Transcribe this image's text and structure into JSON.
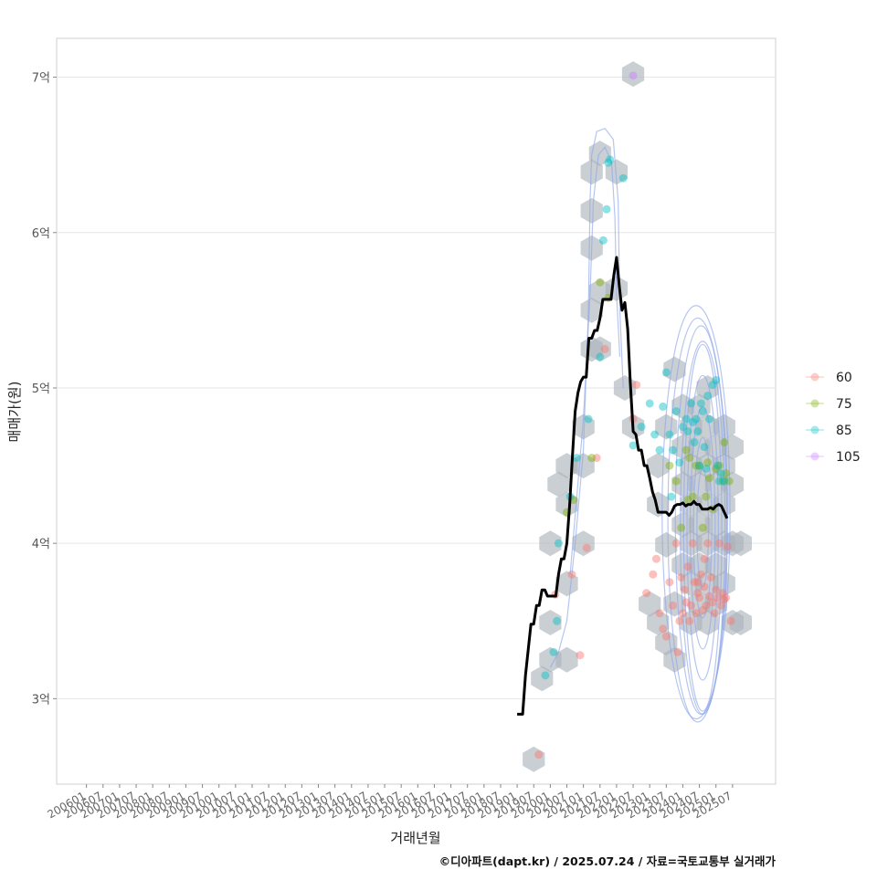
{
  "chart_data": {
    "type": "scatter",
    "title": "",
    "xlabel": "거래년월",
    "ylabel": "매매가(원)",
    "caption": "©디아파트(dapt.kr) / 2025.07.24 / 자료=국토교통부 실거래가",
    "x_tick_labels": [
      "200601",
      "200607",
      "200701",
      "200707",
      "200801",
      "200807",
      "200901",
      "200907",
      "201001",
      "201007",
      "201101",
      "201107",
      "201201",
      "201207",
      "201301",
      "201307",
      "201401",
      "201407",
      "201501",
      "201507",
      "201601",
      "201607",
      "201701",
      "201707",
      "201801",
      "201807",
      "201901",
      "201907",
      "202001",
      "202007",
      "202101",
      "202107",
      "202201",
      "202207",
      "202301",
      "202307",
      "202401",
      "202407",
      "202501",
      "202507"
    ],
    "y_tick_labels": [
      "3억",
      "4억",
      "5억",
      "6억",
      "7억"
    ],
    "y_tick_values": [
      3,
      4,
      5,
      6,
      7
    ],
    "ylim": [
      2.45,
      7.25
    ],
    "xlim_index": [
      -1.8,
      41.6
    ],
    "legend": [
      {
        "label": "60",
        "color": "#F8766D"
      },
      {
        "label": "75",
        "color": "#7CAE00"
      },
      {
        "label": "85",
        "color": "#00BFC4"
      },
      {
        "label": "105",
        "color": "#C77CFF"
      }
    ],
    "median_line": {
      "color": "#000000",
      "points": [
        [
          26.0,
          2.9
        ],
        [
          26.33,
          2.9
        ],
        [
          26.5,
          3.15
        ],
        [
          26.83,
          3.48
        ],
        [
          27.0,
          3.48
        ],
        [
          27.17,
          3.6
        ],
        [
          27.33,
          3.6
        ],
        [
          27.5,
          3.7
        ],
        [
          27.67,
          3.7
        ],
        [
          27.83,
          3.66
        ],
        [
          28.0,
          3.66
        ],
        [
          28.17,
          3.66
        ],
        [
          28.33,
          3.66
        ],
        [
          28.5,
          3.8
        ],
        [
          28.67,
          3.9
        ],
        [
          28.83,
          3.9
        ],
        [
          29.0,
          4.0
        ],
        [
          29.17,
          4.25
        ],
        [
          29.33,
          4.55
        ],
        [
          29.5,
          4.85
        ],
        [
          29.67,
          4.97
        ],
        [
          29.83,
          5.04
        ],
        [
          30.0,
          5.07
        ],
        [
          30.17,
          5.07
        ],
        [
          30.33,
          5.32
        ],
        [
          30.5,
          5.32
        ],
        [
          30.67,
          5.37
        ],
        [
          30.83,
          5.37
        ],
        [
          31.0,
          5.45
        ],
        [
          31.17,
          5.57
        ],
        [
          31.33,
          5.57
        ],
        [
          31.5,
          5.57
        ],
        [
          31.67,
          5.57
        ],
        [
          31.83,
          5.72
        ],
        [
          32.0,
          5.84
        ],
        [
          32.17,
          5.65
        ],
        [
          32.33,
          5.5
        ],
        [
          32.5,
          5.55
        ],
        [
          32.67,
          5.38
        ],
        [
          32.83,
          5.03
        ],
        [
          33.0,
          4.72
        ],
        [
          33.17,
          4.7
        ],
        [
          33.33,
          4.6
        ],
        [
          33.5,
          4.6
        ],
        [
          33.67,
          4.5
        ],
        [
          33.83,
          4.5
        ],
        [
          34.0,
          4.42
        ],
        [
          34.17,
          4.33
        ],
        [
          34.33,
          4.28
        ],
        [
          34.5,
          4.2
        ],
        [
          34.67,
          4.2
        ],
        [
          34.83,
          4.2
        ],
        [
          35.0,
          4.2
        ],
        [
          35.17,
          4.18
        ],
        [
          35.33,
          4.2
        ],
        [
          35.5,
          4.24
        ],
        [
          35.67,
          4.25
        ],
        [
          35.83,
          4.25
        ],
        [
          36.0,
          4.26
        ],
        [
          36.17,
          4.24
        ],
        [
          36.33,
          4.25
        ],
        [
          36.5,
          4.25
        ],
        [
          36.67,
          4.27
        ],
        [
          36.83,
          4.25
        ],
        [
          37.0,
          4.25
        ],
        [
          37.17,
          4.22
        ],
        [
          37.33,
          4.22
        ],
        [
          37.5,
          4.22
        ],
        [
          37.67,
          4.23
        ],
        [
          37.83,
          4.22
        ],
        [
          38.0,
          4.24
        ],
        [
          38.17,
          4.25
        ],
        [
          38.33,
          4.24
        ],
        [
          38.5,
          4.2
        ],
        [
          38.67,
          4.16
        ]
      ]
    },
    "hexbins": [
      [
        27.0,
        2.61
      ],
      [
        27.5,
        3.13
      ],
      [
        28.0,
        3.25
      ],
      [
        28.0,
        3.49
      ],
      [
        28.0,
        4.0
      ],
      [
        28.5,
        4.38
      ],
      [
        29.0,
        3.25
      ],
      [
        29.0,
        3.74
      ],
      [
        29.0,
        4.25
      ],
      [
        29.0,
        4.5
      ],
      [
        30.0,
        4.0
      ],
      [
        30.0,
        4.5
      ],
      [
        30.0,
        4.75
      ],
      [
        30.5,
        5.25
      ],
      [
        30.5,
        5.5
      ],
      [
        31.0,
        5.25
      ],
      [
        31.0,
        5.62
      ],
      [
        30.5,
        5.9
      ],
      [
        30.5,
        6.14
      ],
      [
        30.5,
        6.39
      ],
      [
        31.0,
        6.51
      ],
      [
        32.0,
        6.39
      ],
      [
        32.0,
        5.64
      ],
      [
        32.5,
        5.0
      ],
      [
        33.0,
        7.02
      ],
      [
        33.0,
        4.75
      ],
      [
        34.0,
        3.61
      ],
      [
        34.5,
        3.49
      ],
      [
        34.5,
        4.25
      ],
      [
        34.5,
        4.5
      ],
      [
        35.0,
        3.36
      ],
      [
        35.0,
        3.99
      ],
      [
        35.0,
        4.75
      ],
      [
        35.5,
        5.12
      ],
      [
        35.5,
        3.25
      ],
      [
        35.5,
        3.61
      ],
      [
        36.0,
        3.86
      ],
      [
        36.0,
        4.12
      ],
      [
        36.0,
        4.38
      ],
      [
        36.0,
        4.62
      ],
      [
        36.0,
        4.88
      ],
      [
        36.5,
        3.49
      ],
      [
        36.5,
        3.74
      ],
      [
        36.5,
        4.0
      ],
      [
        36.5,
        4.25
      ],
      [
        36.5,
        4.5
      ],
      [
        36.5,
        4.75
      ],
      [
        37.0,
        3.61
      ],
      [
        37.0,
        3.86
      ],
      [
        37.0,
        4.12
      ],
      [
        37.0,
        4.38
      ],
      [
        37.0,
        4.62
      ],
      [
        37.0,
        4.88
      ],
      [
        37.5,
        3.49
      ],
      [
        37.5,
        3.74
      ],
      [
        37.5,
        4.0
      ],
      [
        37.5,
        4.25
      ],
      [
        37.5,
        4.5
      ],
      [
        37.5,
        4.75
      ],
      [
        37.5,
        5.0
      ],
      [
        38.0,
        3.61
      ],
      [
        38.0,
        3.86
      ],
      [
        38.0,
        4.12
      ],
      [
        38.0,
        4.38
      ],
      [
        38.0,
        4.62
      ],
      [
        38.5,
        3.74
      ],
      [
        38.5,
        4.0
      ],
      [
        38.5,
        4.25
      ],
      [
        38.5,
        4.5
      ],
      [
        38.5,
        4.75
      ],
      [
        39.0,
        3.49
      ],
      [
        39.0,
        4.0
      ],
      [
        39.0,
        4.38
      ],
      [
        39.0,
        4.62
      ],
      [
        39.5,
        3.49
      ],
      [
        39.5,
        4.0
      ]
    ],
    "series": [
      {
        "name": "60",
        "color": "#F8766D",
        "points": [
          [
            27.3,
            2.64
          ],
          [
            28.3,
            3.67
          ],
          [
            29.3,
            3.8
          ],
          [
            29.8,
            3.28
          ],
          [
            30.2,
            3.97
          ],
          [
            30.8,
            4.55
          ],
          [
            31.3,
            5.25
          ],
          [
            33.0,
            4.8
          ],
          [
            33.2,
            5.02
          ],
          [
            33.8,
            3.68
          ],
          [
            34.2,
            3.8
          ],
          [
            34.4,
            3.9
          ],
          [
            34.6,
            3.55
          ],
          [
            34.8,
            3.45
          ],
          [
            35.0,
            3.4
          ],
          [
            35.2,
            3.75
          ],
          [
            35.4,
            3.6
          ],
          [
            35.6,
            4.0
          ],
          [
            35.7,
            3.3
          ],
          [
            35.8,
            3.5
          ],
          [
            35.9,
            3.78
          ],
          [
            36.0,
            3.55
          ],
          [
            36.1,
            3.7
          ],
          [
            36.2,
            3.62
          ],
          [
            36.3,
            3.85
          ],
          [
            36.4,
            3.5
          ],
          [
            36.5,
            3.6
          ],
          [
            36.6,
            4.0
          ],
          [
            36.7,
            3.75
          ],
          [
            36.8,
            3.55
          ],
          [
            36.9,
            3.68
          ],
          [
            37.0,
            3.65
          ],
          [
            37.1,
            3.8
          ],
          [
            37.2,
            3.57
          ],
          [
            37.3,
            3.72
          ],
          [
            37.4,
            3.6
          ],
          [
            37.5,
            4.0
          ],
          [
            37.6,
            3.66
          ],
          [
            37.7,
            3.78
          ],
          [
            37.8,
            3.62
          ],
          [
            37.9,
            3.55
          ],
          [
            38.0,
            3.7
          ],
          [
            38.1,
            3.65
          ],
          [
            38.2,
            4.0
          ],
          [
            38.3,
            3.6
          ],
          [
            38.4,
            3.68
          ],
          [
            38.5,
            3.64
          ],
          [
            38.6,
            3.65
          ],
          [
            38.7,
            3.98
          ],
          [
            36.9,
            3.75
          ],
          [
            37.3,
            3.9
          ],
          [
            38.9,
            3.5
          ]
        ]
      },
      {
        "name": "75",
        "color": "#7CAE00",
        "points": [
          [
            29.0,
            4.2
          ],
          [
            29.4,
            4.28
          ],
          [
            30.5,
            4.55
          ],
          [
            31.0,
            5.68
          ],
          [
            31.5,
            5.58
          ],
          [
            35.2,
            4.5
          ],
          [
            35.6,
            4.4
          ],
          [
            35.9,
            4.1
          ],
          [
            36.2,
            4.6
          ],
          [
            36.4,
            4.55
          ],
          [
            36.6,
            4.3
          ],
          [
            36.8,
            4.5
          ],
          [
            37.0,
            4.5
          ],
          [
            37.2,
            4.1
          ],
          [
            37.4,
            4.3
          ],
          [
            37.6,
            4.42
          ],
          [
            37.8,
            4.22
          ],
          [
            38.0,
            4.48
          ],
          [
            38.2,
            4.5
          ],
          [
            38.4,
            4.4
          ],
          [
            38.6,
            4.45
          ],
          [
            38.8,
            4.4
          ],
          [
            38.5,
            4.65
          ],
          [
            36.3,
            4.28
          ],
          [
            37.5,
            4.52
          ]
        ]
      },
      {
        "name": "85",
        "color": "#00BFC4",
        "points": [
          [
            27.7,
            3.15
          ],
          [
            28.2,
            3.3
          ],
          [
            28.4,
            3.5
          ],
          [
            28.5,
            4.0
          ],
          [
            29.2,
            4.3
          ],
          [
            29.6,
            4.55
          ],
          [
            30.3,
            4.8
          ],
          [
            31.0,
            5.2
          ],
          [
            31.2,
            5.95
          ],
          [
            31.4,
            6.15
          ],
          [
            31.5,
            6.45
          ],
          [
            31.6,
            6.47
          ],
          [
            32.4,
            6.35
          ],
          [
            33.0,
            4.63
          ],
          [
            33.5,
            4.75
          ],
          [
            34.0,
            4.9
          ],
          [
            34.3,
            4.7
          ],
          [
            34.6,
            4.6
          ],
          [
            34.8,
            4.88
          ],
          [
            35.0,
            5.1
          ],
          [
            35.2,
            4.7
          ],
          [
            35.4,
            4.6
          ],
          [
            35.6,
            4.85
          ],
          [
            35.8,
            4.52
          ],
          [
            36.0,
            4.75
          ],
          [
            36.2,
            4.8
          ],
          [
            36.3,
            4.72
          ],
          [
            36.5,
            4.9
          ],
          [
            36.6,
            4.78
          ],
          [
            36.7,
            4.65
          ],
          [
            36.8,
            4.8
          ],
          [
            36.9,
            4.72
          ],
          [
            37.0,
            4.5
          ],
          [
            37.1,
            4.9
          ],
          [
            37.2,
            4.85
          ],
          [
            37.3,
            4.62
          ],
          [
            37.5,
            4.95
          ],
          [
            37.6,
            4.8
          ],
          [
            37.8,
            5.02
          ],
          [
            38.0,
            5.05
          ],
          [
            38.2,
            4.4
          ],
          [
            38.3,
            4.45
          ],
          [
            38.1,
            4.5
          ],
          [
            38.5,
            4.4
          ],
          [
            35.3,
            4.3
          ],
          [
            37.4,
            4.48
          ]
        ]
      },
      {
        "name": "105",
        "color": "#C77CFF",
        "points": [
          [
            33.0,
            7.01
          ]
        ]
      }
    ],
    "density_contours": [
      {
        "center": [
          37.2,
          4.1
        ],
        "radius": [
          0.35,
          0.38
        ]
      },
      {
        "center": [
          37.2,
          4.1
        ],
        "radius": [
          0.55,
          0.58
        ]
      },
      {
        "center": [
          37.2,
          4.1
        ],
        "radius": [
          0.75,
          0.78
        ]
      },
      {
        "center": [
          37.2,
          4.1
        ],
        "radius": [
          0.95,
          0.98
        ]
      },
      {
        "center": [
          37.2,
          4.1
        ],
        "radius": [
          1.15,
          1.18
        ]
      },
      {
        "center": [
          37.2,
          4.1
        ],
        "radius": [
          1.35,
          1.2
        ]
      },
      {
        "center": [
          37.1,
          4.15
        ],
        "radius": [
          1.55,
          1.25
        ]
      },
      {
        "center": [
          36.9,
          4.15
        ],
        "radius": [
          1.8,
          1.3
        ]
      },
      {
        "center": [
          36.8,
          4.2
        ],
        "radius": [
          2.05,
          1.33
        ]
      }
    ],
    "ridge_contour": {
      "outer": [
        [
          28.0,
          3.2
        ],
        [
          28.5,
          3.3
        ],
        [
          29.0,
          3.5
        ],
        [
          29.5,
          4.0
        ],
        [
          30.0,
          4.6
        ],
        [
          30.3,
          5.5
        ],
        [
          30.4,
          6.2
        ],
        [
          30.5,
          6.5
        ],
        [
          30.8,
          6.65
        ],
        [
          31.3,
          6.67
        ],
        [
          31.8,
          6.6
        ],
        [
          32.1,
          6.2
        ],
        [
          32.2,
          5.5
        ],
        [
          32.4,
          5.0
        ]
      ],
      "inner": [
        [
          29.2,
          3.8
        ],
        [
          29.6,
          4.3
        ],
        [
          30.0,
          4.8
        ],
        [
          30.4,
          5.6
        ],
        [
          30.6,
          6.2
        ],
        [
          30.9,
          6.5
        ],
        [
          31.3,
          6.55
        ],
        [
          31.7,
          6.45
        ],
        [
          31.9,
          6.1
        ],
        [
          32.0,
          5.6
        ],
        [
          32.2,
          5.2
        ]
      ]
    }
  }
}
